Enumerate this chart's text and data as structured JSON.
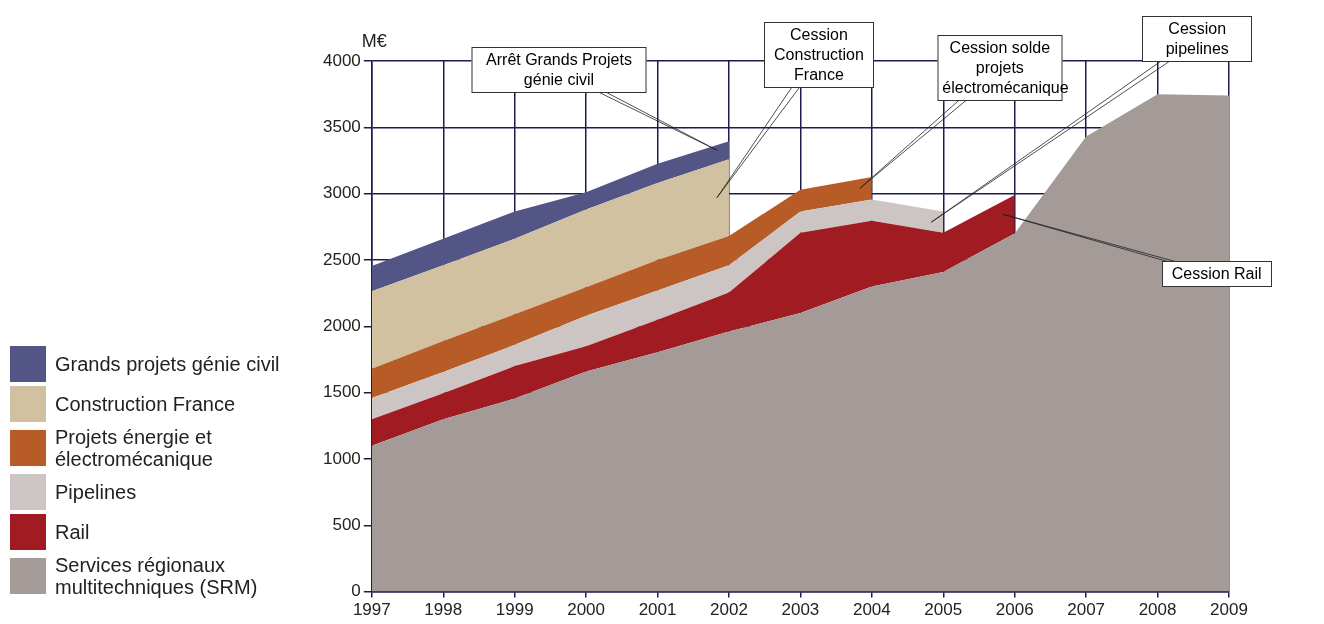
{
  "chart_data": {
    "type": "area",
    "stacked": true,
    "ylabel": "M€",
    "x": [
      1997,
      1998,
      1999,
      2000,
      2001,
      2002,
      2003,
      2004,
      2005,
      2006,
      2007,
      2008,
      2009
    ],
    "xlim": [
      1997,
      2009
    ],
    "xticks": [
      1997,
      1998,
      1999,
      2000,
      2001,
      2002,
      2003,
      2004,
      2005,
      2006,
      2007,
      2008,
      2009
    ],
    "ylim": [
      0,
      4000
    ],
    "yticks": [
      0,
      500,
      1000,
      1500,
      2000,
      2500,
      3000,
      3500,
      4000
    ],
    "grid": true,
    "legend": "left",
    "series": [
      {
        "name": "Services régionaux multitechniques (SRM)",
        "color": "#a49b98",
        "values": [
          1100,
          1300,
          1455,
          1660,
          1805,
          1960,
          2100,
          2300,
          2410,
          2700,
          3430,
          3750,
          3740
        ]
      },
      {
        "name": "Rail",
        "color": "#a01c22",
        "values": [
          200,
          195,
          245,
          190,
          245,
          295,
          605,
          495,
          295,
          290,
          null,
          null,
          null
        ]
      },
      {
        "name": "Pipelines",
        "color": "#cdc5c3",
        "values": [
          160,
          160,
          160,
          230,
          220,
          205,
          160,
          160,
          160,
          null,
          null,
          null,
          null
        ]
      },
      {
        "name": "Projets énergie et électromécanique",
        "color": "#b75c27",
        "values": [
          220,
          235,
          230,
          215,
          230,
          220,
          165,
          170,
          null,
          null,
          null,
          null,
          null
        ]
      },
      {
        "name": "Construction France",
        "color": "#d1c1a0",
        "values": [
          585,
          570,
          570,
          585,
          580,
          580,
          null,
          null,
          null,
          null,
          null,
          null,
          null
        ]
      },
      {
        "name": "Grands projets génie civil",
        "color": "#525585",
        "values": [
          190,
          200,
          205,
          130,
          145,
          135,
          null,
          null,
          null,
          null,
          null,
          null,
          null
        ]
      }
    ],
    "annotations": [
      "Arrêt Grands Projets génie civil",
      "Cession Construction France",
      "Cession solde projets électromécanique",
      "Cession pipelines",
      "Cession Rail"
    ]
  }
}
